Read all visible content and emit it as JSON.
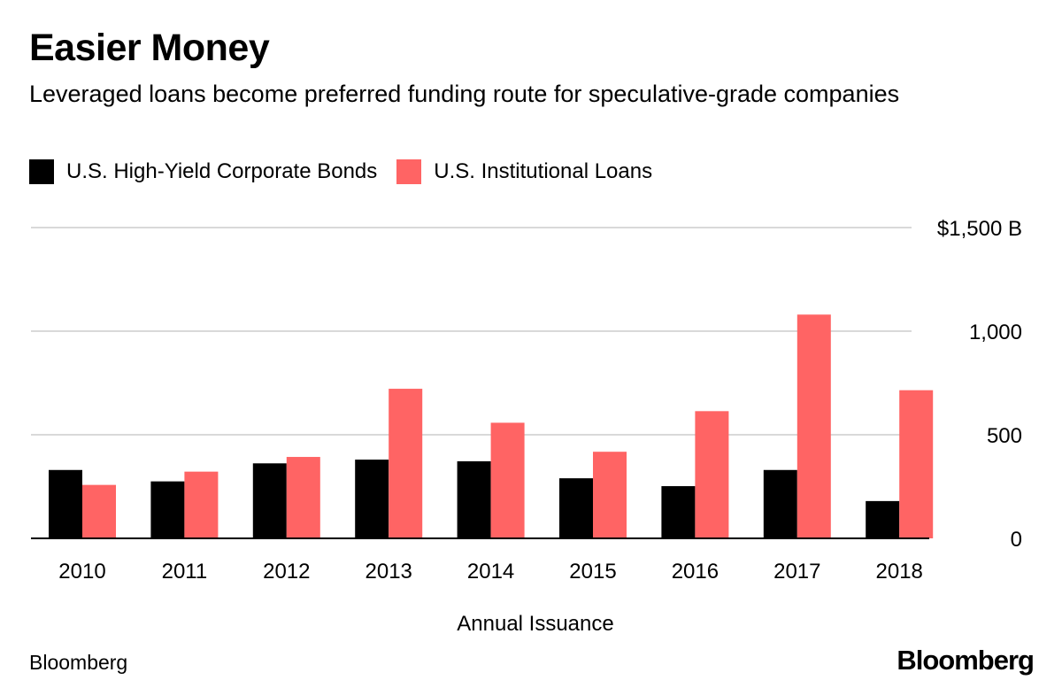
{
  "title": "Easier Money",
  "subtitle": "Leveraged loans become preferred funding route for speculative-grade companies",
  "source": "Bloomberg",
  "logo_text": "Bloomberg",
  "colors": {
    "bonds": "#000000",
    "loans": "#ff6464",
    "grid": "#d9d9d9"
  },
  "chart_data": {
    "type": "bar",
    "categories": [
      "2010",
      "2011",
      "2012",
      "2013",
      "2014",
      "2015",
      "2016",
      "2017",
      "2018"
    ],
    "series": [
      {
        "name": "U.S. High-Yield Corporate Bonds",
        "values": [
          330,
          275,
          362,
          380,
          372,
          290,
          252,
          330,
          180
        ]
      },
      {
        "name": "U.S. Institutional Loans",
        "values": [
          258,
          322,
          393,
          722,
          558,
          418,
          614,
          1080,
          715
        ]
      }
    ],
    "xlabel": "Annual Issuance",
    "ylabel": "",
    "ylim": [
      0,
      1500
    ],
    "yticks": [
      {
        "value": 0,
        "label": "0"
      },
      {
        "value": 500,
        "label": "500"
      },
      {
        "value": 1000,
        "label": "1,000"
      },
      {
        "value": 1500,
        "label": "$1,500 B"
      }
    ],
    "grid": true,
    "legend_position": "top-left",
    "axis_position": "right"
  }
}
